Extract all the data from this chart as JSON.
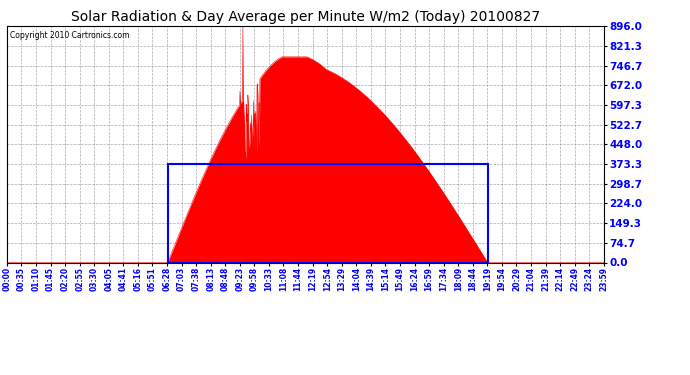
{
  "title": "Solar Radiation & Day Average per Minute W/m2 (Today) 20100827",
  "copyright": "Copyright 2010 Cartronics.com",
  "yticks": [
    0.0,
    74.7,
    149.3,
    224.0,
    298.7,
    373.3,
    448.0,
    522.7,
    597.3,
    672.0,
    746.7,
    821.3,
    896.0
  ],
  "ymax": 896.0,
  "ymin": 0.0,
  "background_color": "#ffffff",
  "plot_bg_color": "#ffffff",
  "fill_color": "#ff0000",
  "grid_color": "#888888",
  "box_color": "#0000ff",
  "title_fontsize": 10,
  "total_minutes": 1440,
  "sunrise_minute": 388,
  "sunset_minute": 1159,
  "day_avg": 373.3,
  "xtick_labels": [
    "00:00",
    "00:35",
    "01:10",
    "01:45",
    "02:20",
    "02:55",
    "03:30",
    "04:05",
    "04:41",
    "05:16",
    "05:51",
    "06:28",
    "07:03",
    "07:38",
    "08:13",
    "08:48",
    "09:23",
    "09:58",
    "10:33",
    "11:08",
    "11:44",
    "12:19",
    "12:54",
    "13:29",
    "14:04",
    "14:39",
    "15:14",
    "15:49",
    "16:24",
    "16:59",
    "17:34",
    "18:09",
    "18:44",
    "19:19",
    "19:54",
    "20:29",
    "21:04",
    "21:39",
    "22:14",
    "22:49",
    "23:24",
    "23:59"
  ]
}
